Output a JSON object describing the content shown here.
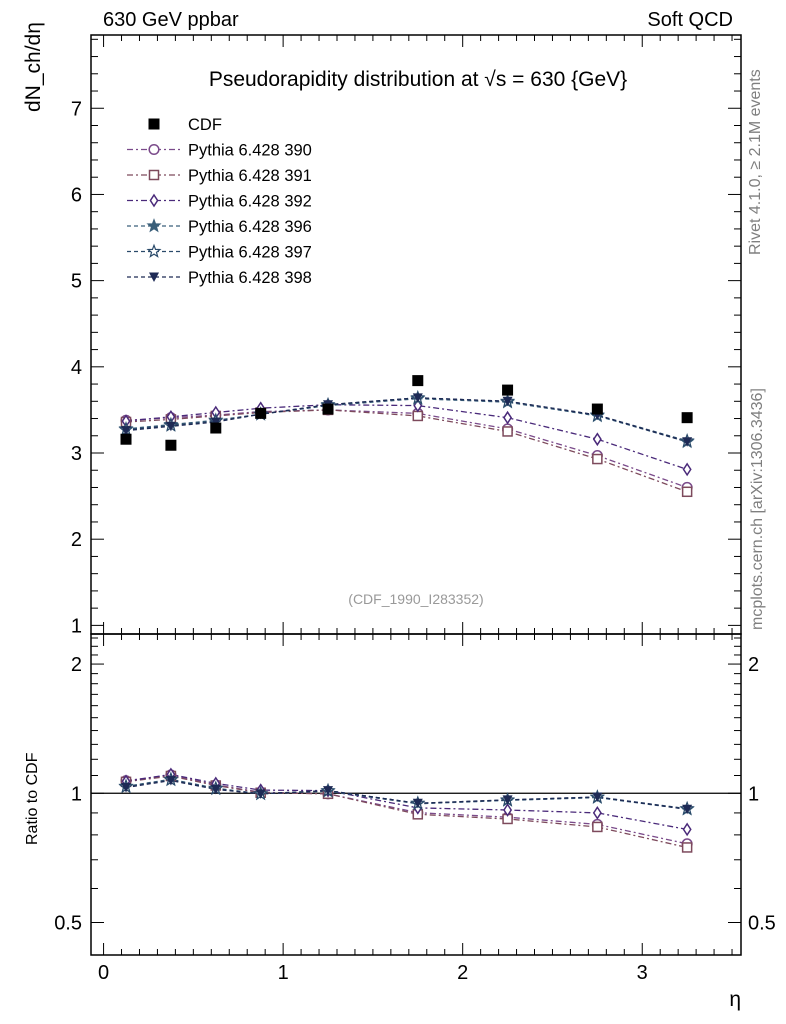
{
  "header": {
    "left_label": "630 GeV ppbar",
    "right_label": "Soft QCD"
  },
  "side_labels": {
    "rivet": "Rivet 4.1.0, ≥ 2.1M events",
    "mcplots": "mcplots.cern.ch [arXiv:1306.3436]"
  },
  "chart_data": {
    "type": "scatter",
    "title": "Pseudorapidity distribution at √s = 630 {GeV}",
    "analysis_id": "(CDF_1990_I283352)",
    "xlabel": "η",
    "ylabel": "dN_ch/dη",
    "ratio_ylabel": "Ratio to CDF",
    "xlim": [
      -0.07,
      3.55
    ],
    "ylim": [
      0.9,
      7.85
    ],
    "ratio_ylim": [
      0.42,
      2.35
    ],
    "ratio_scale": "log",
    "xticks": [
      0,
      1,
      2,
      3
    ],
    "yticks": [
      1,
      2,
      3,
      4,
      5,
      6,
      7
    ],
    "ratio_yticks": [
      0.5,
      1,
      2
    ],
    "x": [
      0.125,
      0.375,
      0.625,
      0.875,
      1.25,
      1.75,
      2.25,
      2.75,
      3.25
    ],
    "data": {
      "name": "CDF",
      "values": [
        3.16,
        3.09,
        3.29,
        3.46,
        3.51,
        3.84,
        3.73,
        3.51,
        3.41
      ],
      "color": "#000000"
    },
    "series": [
      {
        "name": "Pythia 6.428 390",
        "values": [
          3.38,
          3.41,
          3.44,
          3.48,
          3.5,
          3.46,
          3.28,
          2.97,
          2.6
        ],
        "color": "#7a4a8a",
        "marker": "circle",
        "dash": "6,3,2,3"
      },
      {
        "name": "Pythia 6.428 391",
        "values": [
          3.36,
          3.39,
          3.43,
          3.47,
          3.5,
          3.43,
          3.25,
          2.93,
          2.55
        ],
        "color": "#7d4a5c",
        "marker": "square",
        "dash": "6,3,2,3"
      },
      {
        "name": "Pythia 6.428 392",
        "values": [
          3.37,
          3.42,
          3.47,
          3.52,
          3.56,
          3.55,
          3.41,
          3.16,
          2.81
        ],
        "color": "#4a2a7a",
        "marker": "diamond",
        "dash": "6,3,2,3"
      },
      {
        "name": "Pythia 6.428 396",
        "values": [
          3.28,
          3.33,
          3.38,
          3.45,
          3.55,
          3.63,
          3.59,
          3.43,
          3.13
        ],
        "color": "#3a5f7a",
        "marker": "star",
        "dash": "4,3"
      },
      {
        "name": "Pythia 6.428 397",
        "values": [
          3.27,
          3.32,
          3.37,
          3.45,
          3.56,
          3.64,
          3.6,
          3.44,
          3.14
        ],
        "color": "#2a4a6a",
        "marker": "star-open",
        "dash": "4,3"
      },
      {
        "name": "Pythia 6.428 398",
        "values": [
          3.26,
          3.31,
          3.36,
          3.45,
          3.56,
          3.64,
          3.6,
          3.44,
          3.13
        ],
        "color": "#1e2a55",
        "marker": "triangle-down",
        "dash": "4,3"
      }
    ]
  }
}
